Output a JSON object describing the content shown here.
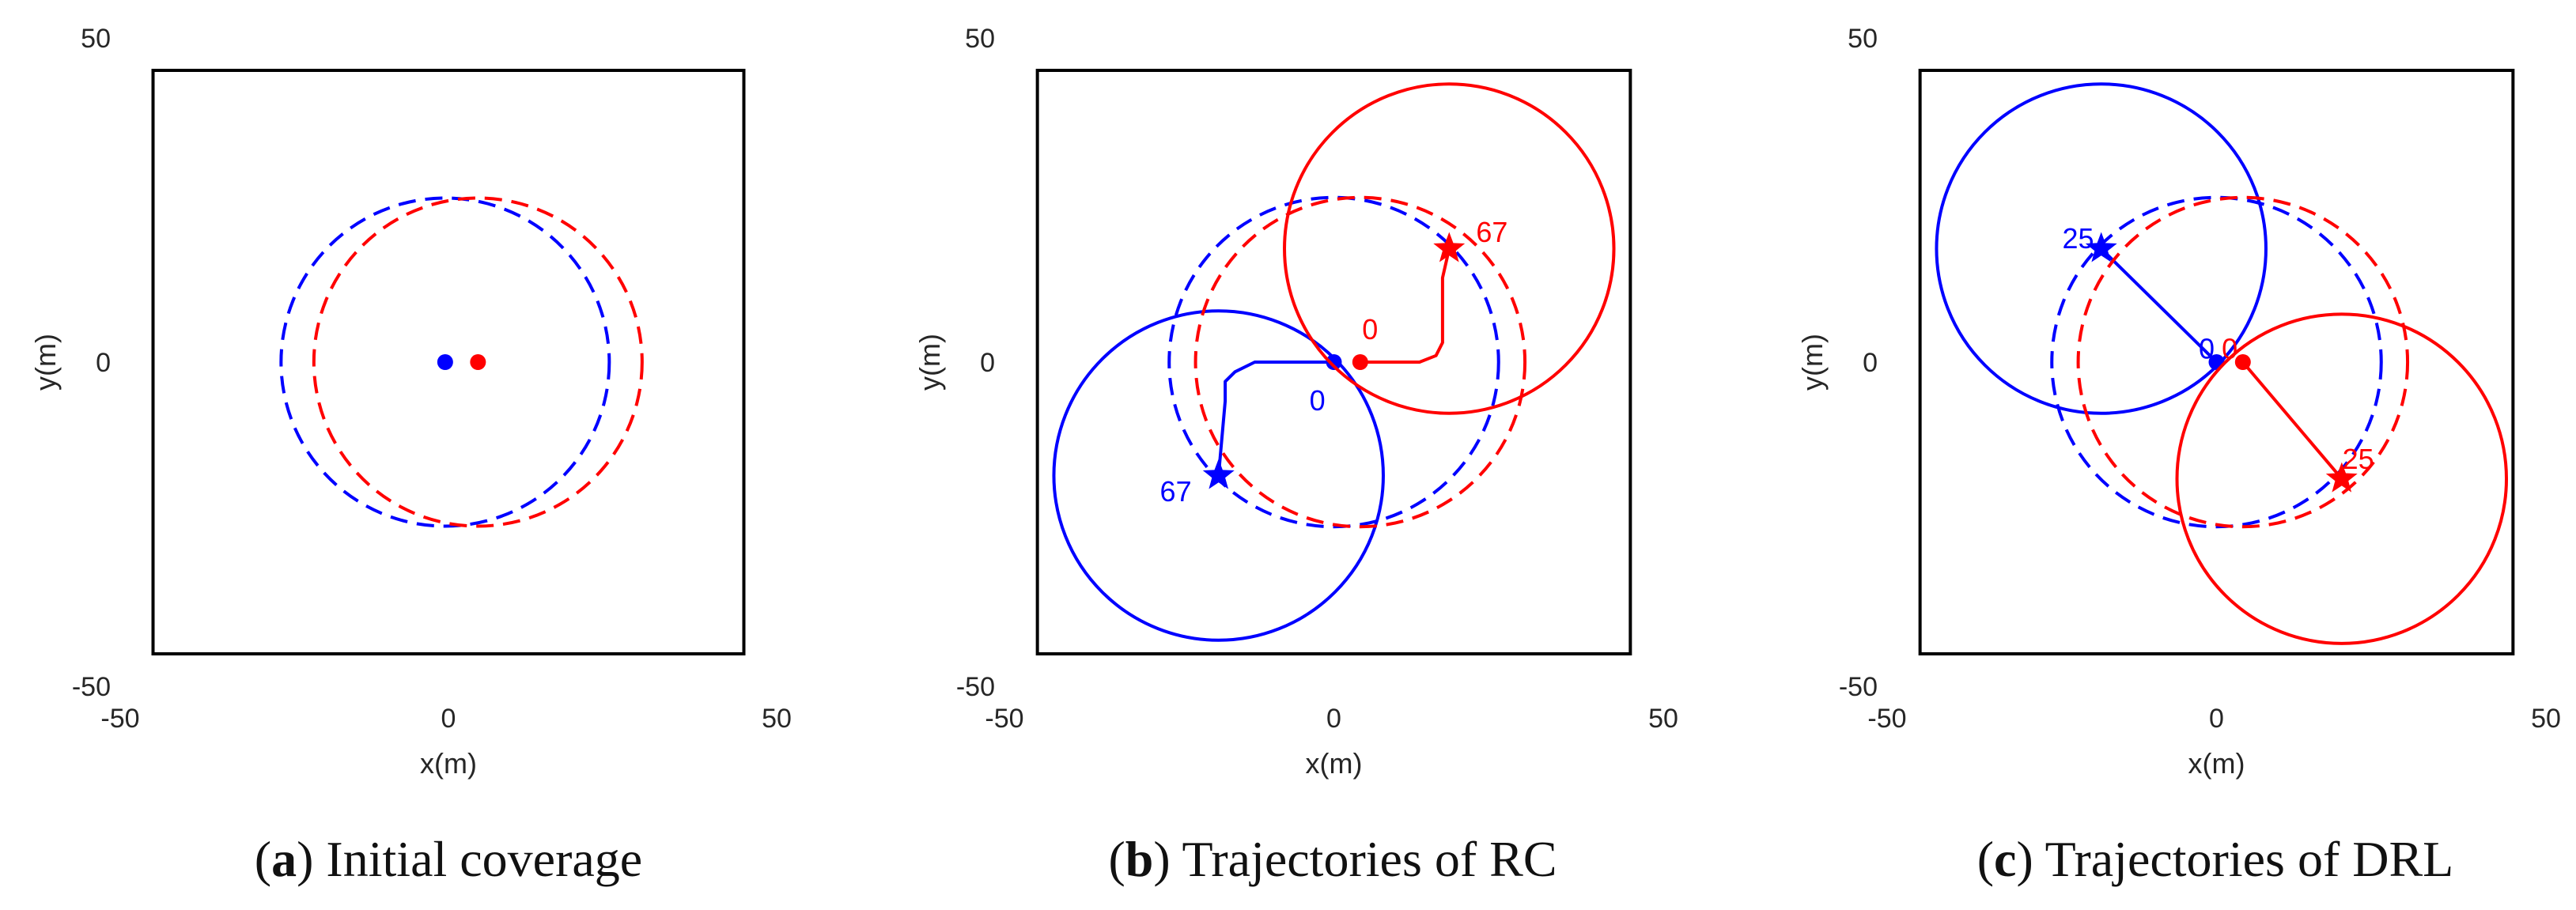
{
  "chart_data": [
    {
      "type": "scatter",
      "panel_label": "a",
      "caption": "Initial coverage",
      "xlabel": "x(m)",
      "ylabel": "y(m)",
      "xlim": [
        -50,
        50
      ],
      "ylim": [
        -50,
        50
      ],
      "xticks": [
        -50,
        0,
        50
      ],
      "yticks": [
        -50,
        0,
        50
      ],
      "boundary": [
        -45,
        45
      ],
      "series": [
        {
          "color": "#0000ff",
          "circles": [
            {
              "cx": -0.5,
              "cy": 0,
              "r": 25,
              "dashed": true
            }
          ],
          "markers": [
            {
              "x": -0.5,
              "y": 0,
              "shape": "dot"
            }
          ],
          "path": [],
          "labels": []
        },
        {
          "color": "#ff0000",
          "circles": [
            {
              "cx": 4.5,
              "cy": 0,
              "r": 25,
              "dashed": true
            }
          ],
          "markers": [
            {
              "x": 4.5,
              "y": 0,
              "shape": "dot"
            }
          ],
          "path": [],
          "labels": []
        }
      ]
    },
    {
      "type": "line",
      "panel_label": "b",
      "caption": "Trajectories of RC",
      "xlabel": "x(m)",
      "ylabel": "y(m)",
      "xlim": [
        -50,
        50
      ],
      "ylim": [
        -50,
        50
      ],
      "xticks": [
        -50,
        0,
        50
      ],
      "yticks": [
        -50,
        0,
        50
      ],
      "boundary": [
        -45,
        45
      ],
      "series": [
        {
          "color": "#0000ff",
          "circles": [
            {
              "cx": 0,
              "cy": 0,
              "r": 25,
              "dashed": true
            },
            {
              "cx": -17.5,
              "cy": -17.5,
              "r": 25,
              "dashed": false
            }
          ],
          "markers": [
            {
              "x": 0,
              "y": 0,
              "shape": "dot"
            },
            {
              "x": -17.5,
              "y": -17.5,
              "shape": "star"
            }
          ],
          "path": [
            [
              0,
              0
            ],
            [
              -12,
              0
            ],
            [
              -15,
              -1.5
            ],
            [
              -16.5,
              -3
            ],
            [
              -16.5,
              -6
            ],
            [
              -17.5,
              -17.5
            ]
          ],
          "labels": [
            {
              "text": "0",
              "x": -2.5,
              "y": -6,
              "anchor": "middle"
            },
            {
              "text": "67",
              "x": -24,
              "y": -20,
              "anchor": "middle"
            }
          ]
        },
        {
          "color": "#ff0000",
          "circles": [
            {
              "cx": 4,
              "cy": 0,
              "r": 25,
              "dashed": true
            },
            {
              "cx": 17.5,
              "cy": 17.5,
              "r": 25,
              "dashed": false
            }
          ],
          "markers": [
            {
              "x": 4,
              "y": 0,
              "shape": "dot"
            },
            {
              "x": 17.5,
              "y": 17.5,
              "shape": "star"
            }
          ],
          "path": [
            [
              4,
              0
            ],
            [
              13,
              0
            ],
            [
              15.5,
              1
            ],
            [
              16.5,
              3
            ],
            [
              16.5,
              13
            ],
            [
              17.5,
              17.5
            ]
          ],
          "labels": [
            {
              "text": "0",
              "x": 5.5,
              "y": 5,
              "anchor": "middle"
            },
            {
              "text": "67",
              "x": 24,
              "y": 20,
              "anchor": "middle"
            }
          ]
        }
      ]
    },
    {
      "type": "line",
      "panel_label": "c",
      "caption": "Trajectories of DRL",
      "xlabel": "x(m)",
      "ylabel": "y(m)",
      "xlim": [
        -50,
        50
      ],
      "ylim": [
        -50,
        50
      ],
      "xticks": [
        -50,
        0,
        50
      ],
      "yticks": [
        -50,
        0,
        50
      ],
      "boundary": [
        -45,
        45
      ],
      "series": [
        {
          "color": "#0000ff",
          "circles": [
            {
              "cx": 0,
              "cy": 0,
              "r": 25,
              "dashed": true
            },
            {
              "cx": -17.5,
              "cy": 17.5,
              "r": 25,
              "dashed": false
            }
          ],
          "markers": [
            {
              "x": 0,
              "y": 0,
              "shape": "dot"
            },
            {
              "x": -17.5,
              "y": 17.5,
              "shape": "star"
            }
          ],
          "path": [
            [
              0,
              0
            ],
            [
              -17.5,
              17.5
            ]
          ],
          "labels": [
            {
              "text": "0",
              "x": -1.5,
              "y": 2,
              "anchor": "middle"
            },
            {
              "text": "25",
              "x": -21,
              "y": 19,
              "anchor": "middle"
            }
          ]
        },
        {
          "color": "#ff0000",
          "circles": [
            {
              "cx": 4,
              "cy": 0,
              "r": 25,
              "dashed": true
            },
            {
              "cx": 19,
              "cy": -18,
              "r": 25,
              "dashed": false
            }
          ],
          "markers": [
            {
              "x": 4,
              "y": 0,
              "shape": "dot"
            },
            {
              "x": 19,
              "y": -18,
              "shape": "star"
            }
          ],
          "path": [
            [
              4,
              0
            ],
            [
              19,
              -18
            ]
          ],
          "labels": [
            {
              "text": "0",
              "x": 2,
              "y": 2,
              "anchor": "middle"
            },
            {
              "text": "25",
              "x": 21.5,
              "y": -15,
              "anchor": "middle"
            }
          ]
        }
      ]
    }
  ]
}
